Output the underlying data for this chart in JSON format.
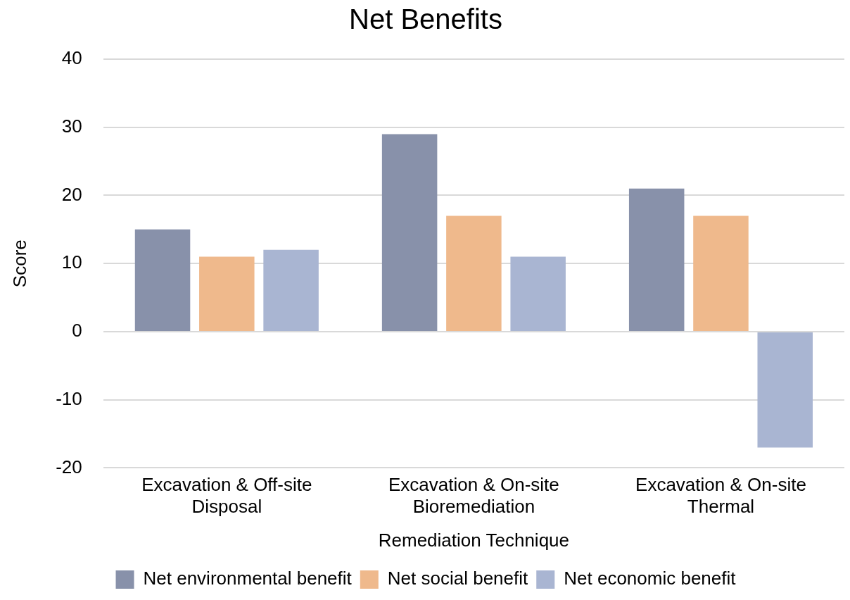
{
  "chart_data": {
    "type": "bar",
    "title": "Net Benefits",
    "xlabel": "Remediation Technique",
    "ylabel": "Score",
    "categories": [
      "Excavation & Off-site Disposal",
      "Excavation & On-site Bioremediation",
      "Excavation & On-site Thermal"
    ],
    "series": [
      {
        "name": "Net environmental benefit",
        "color": "#8891aa",
        "values": [
          15,
          29,
          21
        ]
      },
      {
        "name": "Net social benefit",
        "color": "#efb98c",
        "values": [
          11,
          17,
          17
        ]
      },
      {
        "name": "Net economic benefit",
        "color": "#a9b5d2",
        "values": [
          12,
          11,
          -17
        ]
      }
    ],
    "ylim": [
      -20,
      40
    ],
    "yticks": [
      -20,
      -10,
      0,
      10,
      20,
      30,
      40
    ],
    "grid": "y",
    "legend": "bottom"
  }
}
